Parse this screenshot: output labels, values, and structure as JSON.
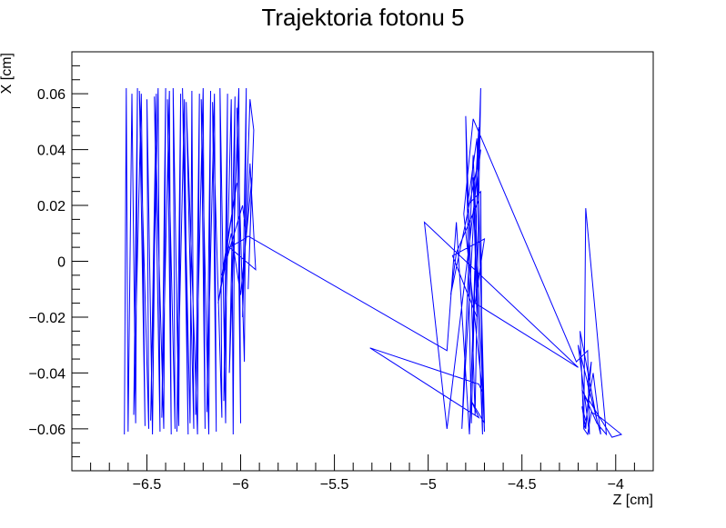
{
  "chart_data": {
    "type": "line",
    "title": "Trajektoria fotonu 5",
    "xlabel": "Z [cm]",
    "ylabel": "X [cm]",
    "xlim": [
      -6.9,
      -3.8
    ],
    "ylim": [
      -0.075,
      0.075
    ],
    "x_ticks": [
      {
        "value": -6.5,
        "label": "−6.5"
      },
      {
        "value": -6.0,
        "label": "−6"
      },
      {
        "value": -5.5,
        "label": "−5.5"
      },
      {
        "value": -5.0,
        "label": "−5"
      },
      {
        "value": -4.5,
        "label": "−4.5"
      },
      {
        "value": -4.0,
        "label": "−4"
      }
    ],
    "y_ticks": [
      {
        "value": -0.06,
        "label": "−0.06"
      },
      {
        "value": -0.04,
        "label": "−0.04"
      },
      {
        "value": -0.02,
        "label": "−0.02"
      },
      {
        "value": 0.0,
        "label": "0"
      },
      {
        "value": 0.02,
        "label": "0.02"
      },
      {
        "value": 0.04,
        "label": "0.04"
      },
      {
        "value": 0.06,
        "label": "0.06"
      }
    ],
    "x_minor_step": 0.1,
    "y_minor_step": 0.005,
    "grid": false,
    "line_color": "#0000ff",
    "series": [
      {
        "x": [
          -6.62,
          -6.61,
          -6.6,
          -6.58,
          -6.56,
          -6.55,
          -6.57,
          -6.53,
          -6.51,
          -6.54,
          -6.49,
          -6.5,
          -6.47,
          -6.45,
          -6.48,
          -6.44,
          -6.43,
          -6.46,
          -6.41,
          -6.4,
          -6.42,
          -6.38,
          -6.37,
          -6.39,
          -6.35,
          -6.36,
          -6.33,
          -6.32,
          -6.34,
          -6.3,
          -6.28,
          -6.31,
          -6.27,
          -6.26,
          -6.25,
          -6.29,
          -6.23,
          -6.22,
          -6.24,
          -6.2,
          -6.19,
          -6.21,
          -6.17,
          -6.16,
          -6.18,
          -6.14,
          -6.13,
          -6.15,
          -6.1,
          -6.11,
          -6.08,
          -6.07,
          -6.09,
          -6.05,
          -6.04,
          -6.03,
          -6.06,
          -6.01,
          -6.0,
          -6.02,
          -5.98,
          -5.97,
          -5.99,
          -5.95,
          -5.93,
          -5.96,
          -5.94,
          -6.0,
          -6.05,
          -6.12,
          -6.02,
          -6.1,
          -5.99,
          -5.97,
          -5.95,
          -5.92,
          -6.06,
          -5.98,
          -5.96,
          -4.9,
          -4.85,
          -4.78,
          -4.72,
          -4.75,
          -4.8,
          -4.77,
          -4.73,
          -4.82,
          -4.76,
          -4.7,
          -4.74,
          -4.79,
          -4.72,
          -4.71,
          -4.76,
          -4.74,
          -4.87,
          -4.7,
          -4.75,
          -4.2,
          -5.02,
          -4.9,
          -4.72,
          -4.88,
          -4.85,
          -4.73,
          -4.7,
          -4.77,
          -4.73,
          -5.31,
          -4.73,
          -4.71,
          -4.81,
          -4.76,
          -4.21,
          -4.15,
          -4.14,
          -4.2,
          -4.1,
          -4.19,
          -4.17,
          -4.16,
          -4.05,
          -4.1,
          -4.12,
          -4.18,
          -4.15,
          -4.14,
          -4.02,
          -3.97,
          -4.08,
          -4.13,
          -4.15,
          -4.17,
          -4.16,
          -4.14,
          -4.12,
          -4.08,
          -4.15,
          -4.13,
          -4.16,
          -4.18,
          -4.16
        ],
        "y": [
          -0.062,
          0.062,
          -0.061,
          0.06,
          -0.058,
          0.062,
          -0.055,
          0.06,
          -0.059,
          0.061,
          -0.06,
          0.058,
          -0.062,
          0.06,
          -0.057,
          0.062,
          -0.061,
          0.059,
          -0.06,
          0.062,
          -0.056,
          0.061,
          -0.062,
          0.058,
          -0.06,
          0.062,
          -0.059,
          0.06,
          -0.061,
          0.058,
          -0.062,
          0.062,
          -0.058,
          0.061,
          -0.06,
          0.057,
          -0.062,
          0.06,
          -0.055,
          0.062,
          -0.06,
          0.058,
          -0.062,
          0.061,
          -0.054,
          0.06,
          -0.061,
          0.057,
          -0.056,
          0.062,
          -0.058,
          0.06,
          -0.05,
          0.058,
          -0.062,
          0.059,
          -0.04,
          0.062,
          -0.058,
          0.055,
          -0.036,
          0.062,
          -0.02,
          0.058,
          0.047,
          -0.01,
          0.03,
          -0.012,
          0.01,
          -0.015,
          0.028,
          -0.005,
          0.02,
          0.009,
          0.035,
          -0.003,
          0.005,
          0.008,
          0.009,
          -0.032,
          0.014,
          -0.062,
          0.062,
          -0.055,
          0.052,
          -0.058,
          0.048,
          -0.06,
          0.038,
          -0.061,
          0.044,
          0.02,
          0.025,
          -0.062,
          0.03,
          -0.02,
          0.002,
          0.008,
          -0.015,
          -0.038,
          0.014,
          -0.06,
          0.04,
          -0.012,
          0.003,
          0.022,
          -0.058,
          -0.05,
          -0.056,
          -0.031,
          -0.044,
          -0.047,
          0.017,
          0.051,
          -0.036,
          -0.032,
          -0.062,
          -0.03,
          -0.057,
          -0.025,
          -0.06,
          0.019,
          -0.062,
          -0.058,
          -0.055,
          -0.046,
          -0.05,
          -0.05,
          -0.063,
          -0.062,
          -0.056,
          -0.054,
          -0.062,
          -0.06,
          -0.058,
          -0.048,
          -0.04,
          -0.062,
          -0.044,
          -0.036,
          -0.06,
          -0.052,
          -0.057
        ]
      }
    ]
  }
}
